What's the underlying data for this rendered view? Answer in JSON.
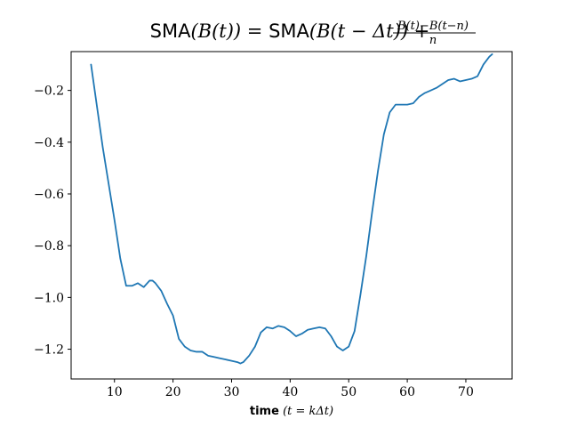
{
  "chart_data": {
    "type": "line",
    "title": {
      "lhs_func": "SMA",
      "lhs_arg": "(B(t))",
      "eq": " = ",
      "rhs_func": "SMA",
      "rhs_arg": "(B(t − Δt)) + ",
      "frac_num": "B(t)−B(t−n)",
      "frac_den": "n"
    },
    "xlabel": {
      "bold": "time",
      "rest": " (t = kΔt)"
    },
    "ylabel": "",
    "xlim": [
      2.6,
      77.9
    ],
    "ylim": [
      -1.315,
      -0.05
    ],
    "xticks": [
      10,
      20,
      30,
      40,
      50,
      60,
      70
    ],
    "yticks": [
      -1.2,
      -1.0,
      -0.8,
      -0.6,
      -0.4,
      -0.2
    ],
    "ytick_labels": [
      "−1.2",
      "−1.0",
      "−0.8",
      "−0.6",
      "−0.4",
      "−0.2"
    ],
    "grid": false,
    "color": "#1f77b4",
    "series": [
      {
        "x": [
          6,
          7,
          8,
          9,
          10,
          11,
          12,
          13,
          14,
          15,
          16,
          16.5,
          17,
          18,
          19,
          20,
          21,
          22,
          23,
          24,
          25,
          26,
          27,
          28,
          29,
          30,
          31,
          31.5,
          32,
          33,
          34,
          35,
          36,
          37,
          38,
          39,
          40,
          41,
          42,
          43,
          44,
          45,
          46,
          47,
          48,
          49,
          50,
          51,
          52,
          53,
          54,
          55,
          56,
          57,
          58,
          59,
          60,
          61,
          62,
          63,
          64,
          65,
          66,
          67,
          68,
          69,
          70,
          71,
          72,
          73,
          74,
          74.5
        ],
        "y": [
          -0.1,
          -0.26,
          -0.42,
          -0.56,
          -0.7,
          -0.85,
          -0.955,
          -0.955,
          -0.945,
          -0.96,
          -0.935,
          -0.935,
          -0.945,
          -0.975,
          -1.025,
          -1.07,
          -1.16,
          -1.19,
          -1.205,
          -1.21,
          -1.21,
          -1.225,
          -1.23,
          -1.235,
          -1.24,
          -1.245,
          -1.25,
          -1.255,
          -1.25,
          -1.225,
          -1.19,
          -1.135,
          -1.115,
          -1.12,
          -1.11,
          -1.115,
          -1.13,
          -1.15,
          -1.14,
          -1.125,
          -1.12,
          -1.115,
          -1.12,
          -1.15,
          -1.19,
          -1.205,
          -1.19,
          -1.13,
          -0.99,
          -0.84,
          -0.67,
          -0.51,
          -0.37,
          -0.285,
          -0.255,
          -0.255,
          -0.255,
          -0.25,
          -0.225,
          -0.21,
          -0.2,
          -0.19,
          -0.175,
          -0.16,
          -0.155,
          -0.165,
          -0.16,
          -0.155,
          -0.145,
          -0.1,
          -0.07,
          -0.06
        ]
      }
    ]
  }
}
